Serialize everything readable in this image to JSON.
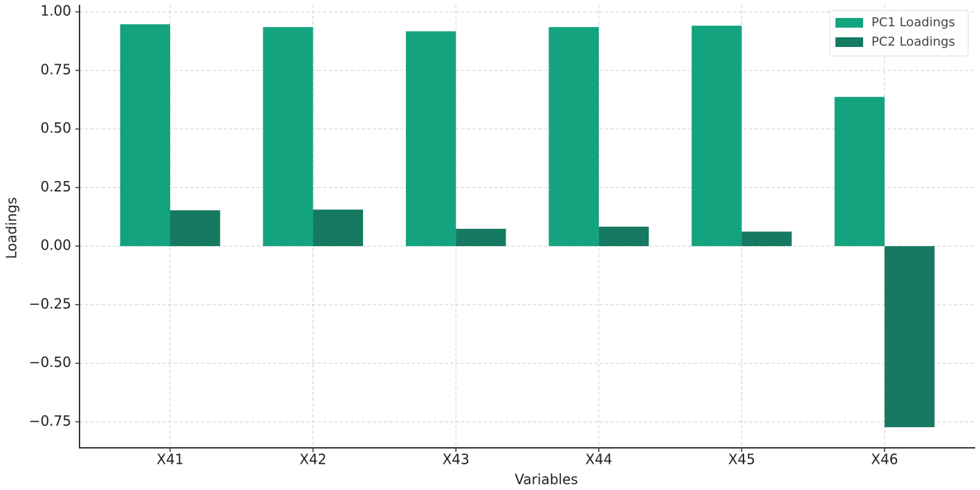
{
  "chart_data": {
    "type": "bar",
    "x_label": "Variables",
    "y_label": "Loadings",
    "categories": [
      "X41",
      "X42",
      "X43",
      "X44",
      "X45",
      "X46"
    ],
    "series": [
      {
        "name": "PC1 Loadings",
        "color": "#13a37f",
        "values": [
          0.947,
          0.935,
          0.917,
          0.935,
          0.941,
          0.637
        ]
      },
      {
        "name": "PC2 Loadings",
        "color": "#167a62",
        "values": [
          0.153,
          0.156,
          0.074,
          0.083,
          0.062,
          -0.773
        ]
      }
    ],
    "ylim": [
      -0.861,
      1.03
    ],
    "yticks": [
      {
        "value": -0.75,
        "label": "−0.75"
      },
      {
        "value": -0.5,
        "label": "−0.50"
      },
      {
        "value": -0.25,
        "label": "−0.25"
      },
      {
        "value": 0,
        "label": "0.00"
      },
      {
        "value": 0.25,
        "label": "0.25"
      },
      {
        "value": 0.5,
        "label": "0.50"
      },
      {
        "value": 0.75,
        "label": "0.75"
      },
      {
        "value": 1,
        "label": "1.00"
      }
    ],
    "grid": true,
    "legend": "upper right"
  }
}
